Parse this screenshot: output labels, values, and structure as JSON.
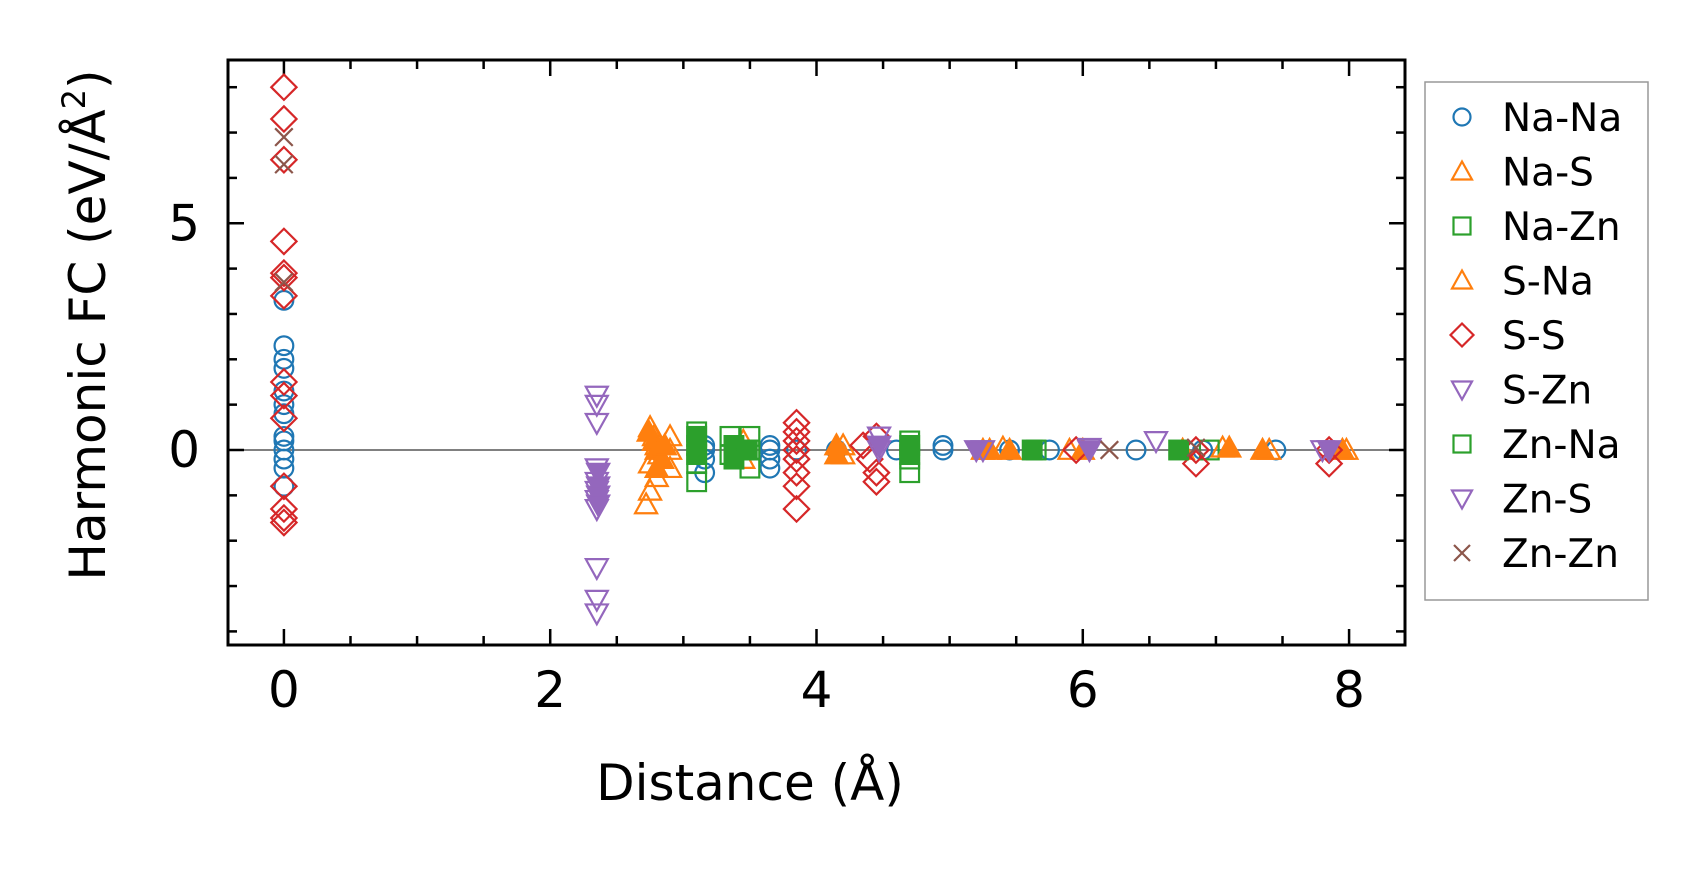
{
  "chart_data": {
    "type": "scatter",
    "title": "",
    "xlabel": "Distance (Å)",
    "ylabel": "Harmonic FC (eV/Å",
    "ylabel_sup": "2",
    "ylabel_close": ")",
    "xlim": [
      -0.42,
      8.42
    ],
    "ylim": [
      -4.3,
      8.6
    ],
    "xticks": [
      0,
      2,
      4,
      6,
      8
    ],
    "xtick_labels": [
      "0",
      "2",
      "4",
      "6",
      "8"
    ],
    "yticks": [
      0,
      5
    ],
    "ytick_labels": [
      "0",
      "5"
    ],
    "zero_line": 0,
    "legend_position": "outside-right",
    "series": [
      {
        "name": "Na-Na",
        "marker": "circle",
        "filled": false,
        "color": "#1f77b4",
        "points": [
          [
            0,
            2.3
          ],
          [
            0,
            2.0
          ],
          [
            0,
            1.8
          ],
          [
            0,
            1.3
          ],
          [
            0,
            1.0
          ],
          [
            0,
            0.8
          ],
          [
            0,
            0.3
          ],
          [
            0,
            0.2
          ],
          [
            0,
            0.0
          ],
          [
            0,
            -0.2
          ],
          [
            0,
            -0.4
          ],
          [
            0,
            -0.8
          ],
          [
            0,
            3.3
          ],
          [
            3.16,
            0.1
          ],
          [
            3.16,
            0.0
          ],
          [
            3.16,
            -0.2
          ],
          [
            3.16,
            -0.5
          ],
          [
            3.65,
            0.1
          ],
          [
            3.65,
            0.0
          ],
          [
            3.65,
            -0.2
          ],
          [
            3.65,
            -0.4
          ],
          [
            3.85,
            0.0
          ],
          [
            4.15,
            0.0
          ],
          [
            4.6,
            0.0
          ],
          [
            4.95,
            0.1
          ],
          [
            4.95,
            0.0
          ],
          [
            5.45,
            0.0
          ],
          [
            5.75,
            0.0
          ],
          [
            6.4,
            0.0
          ],
          [
            6.9,
            0.0
          ],
          [
            7.45,
            0.0
          ]
        ]
      },
      {
        "name": "Na-S",
        "marker": "triangle-up",
        "filled": false,
        "color": "#ff7f0e",
        "points": [
          [
            2.75,
            0.5
          ],
          [
            2.78,
            0.3
          ],
          [
            2.8,
            0.1
          ],
          [
            2.82,
            -0.1
          ],
          [
            2.75,
            -0.3
          ],
          [
            2.8,
            -0.6
          ],
          [
            2.75,
            -0.9
          ],
          [
            2.72,
            -1.2
          ],
          [
            2.9,
            0.3
          ],
          [
            2.9,
            0.0
          ],
          [
            2.9,
            -0.4
          ],
          [
            3.45,
            0.2
          ],
          [
            3.45,
            -0.2
          ],
          [
            4.2,
            0.1
          ],
          [
            4.2,
            -0.1
          ],
          [
            5.25,
            0.0
          ],
          [
            5.4,
            0.05
          ],
          [
            5.9,
            0.0
          ],
          [
            6.75,
            0.0
          ],
          [
            7.05,
            0.05
          ],
          [
            7.4,
            0.0
          ],
          [
            7.98,
            0.0
          ]
        ]
      },
      {
        "name": "Na-Zn",
        "marker": "square",
        "filled": false,
        "color": "#2ca02c",
        "points": [
          [
            3.1,
            0.4
          ],
          [
            3.1,
            0.1
          ],
          [
            3.1,
            -0.3
          ],
          [
            3.1,
            -0.7
          ],
          [
            3.35,
            0.3
          ],
          [
            3.35,
            -0.1
          ],
          [
            3.5,
            0.3
          ],
          [
            3.5,
            0.0
          ],
          [
            3.5,
            -0.4
          ],
          [
            4.7,
            0.2
          ],
          [
            4.7,
            -0.2
          ],
          [
            4.7,
            -0.5
          ],
          [
            5.65,
            0.0
          ],
          [
            6.95,
            0.0
          ]
        ]
      },
      {
        "name": "S-Na",
        "marker": "triangle-up",
        "filled": true,
        "color": "#ff7f0e",
        "points": [
          [
            2.74,
            0.4
          ],
          [
            2.78,
            0.2
          ],
          [
            2.8,
            0.0
          ],
          [
            2.84,
            -0.2
          ],
          [
            2.8,
            -0.4
          ],
          [
            2.86,
            0.1
          ],
          [
            4.15,
            0.1
          ],
          [
            4.15,
            -0.1
          ],
          [
            5.3,
            0.0
          ],
          [
            5.45,
            0.0
          ],
          [
            6.0,
            0.0
          ],
          [
            6.75,
            0.0
          ],
          [
            7.1,
            0.05
          ],
          [
            7.35,
            0.0
          ],
          [
            7.95,
            0.0
          ]
        ]
      },
      {
        "name": "S-S",
        "marker": "diamond",
        "filled": false,
        "color": "#d62728",
        "points": [
          [
            0,
            8.0
          ],
          [
            0,
            7.3
          ],
          [
            0,
            6.4
          ],
          [
            0,
            4.6
          ],
          [
            0,
            3.9
          ],
          [
            0,
            3.8
          ],
          [
            0,
            3.4
          ],
          [
            0,
            1.5
          ],
          [
            0,
            1.2
          ],
          [
            0,
            0.7
          ],
          [
            0,
            -0.8
          ],
          [
            0,
            -1.3
          ],
          [
            0,
            -1.5
          ],
          [
            0,
            -1.6
          ],
          [
            3.85,
            0.6
          ],
          [
            3.85,
            0.4
          ],
          [
            3.85,
            0.2
          ],
          [
            3.85,
            0.0
          ],
          [
            3.85,
            -0.2
          ],
          [
            3.85,
            -0.5
          ],
          [
            3.85,
            -0.8
          ],
          [
            3.85,
            -1.3
          ],
          [
            4.35,
            0.1
          ],
          [
            4.4,
            -0.2
          ],
          [
            4.45,
            -0.5
          ],
          [
            4.45,
            -0.7
          ],
          [
            4.45,
            0.3
          ],
          [
            5.95,
            0.0
          ],
          [
            6.85,
            0.0
          ],
          [
            6.85,
            -0.3
          ],
          [
            7.85,
            0.0
          ],
          [
            7.85,
            -0.3
          ]
        ]
      },
      {
        "name": "S-Zn",
        "marker": "triangle-down",
        "filled": false,
        "color": "#9467bd",
        "points": [
          [
            2.35,
            1.2
          ],
          [
            2.35,
            1.0
          ],
          [
            2.35,
            0.6
          ],
          [
            2.35,
            -0.4
          ],
          [
            2.35,
            -0.7
          ],
          [
            2.35,
            -0.9
          ],
          [
            2.35,
            -1.1
          ],
          [
            2.35,
            -1.3
          ],
          [
            2.35,
            -2.6
          ],
          [
            2.35,
            -3.3
          ],
          [
            2.35,
            -3.6
          ],
          [
            4.47,
            0.3
          ],
          [
            4.47,
            0.0
          ],
          [
            5.25,
            0.0
          ],
          [
            6.05,
            0.05
          ],
          [
            6.55,
            0.2
          ],
          [
            7.8,
            0.0
          ]
        ]
      },
      {
        "name": "Zn-Na",
        "marker": "square",
        "filled": true,
        "color": "#2ca02c",
        "points": [
          [
            3.1,
            0.3
          ],
          [
            3.1,
            -0.1
          ],
          [
            3.38,
            0.1
          ],
          [
            3.38,
            -0.2
          ],
          [
            3.48,
            0.0
          ],
          [
            4.7,
            0.1
          ],
          [
            4.7,
            -0.1
          ],
          [
            5.62,
            0.0
          ],
          [
            6.72,
            0.0
          ]
        ]
      },
      {
        "name": "Zn-S",
        "marker": "triangle-down",
        "filled": true,
        "color": "#9467bd",
        "points": [
          [
            2.36,
            -0.5
          ],
          [
            2.36,
            -0.8
          ],
          [
            2.36,
            -1.0
          ],
          [
            2.36,
            -1.2
          ],
          [
            4.47,
            0.1
          ],
          [
            5.2,
            0.0
          ],
          [
            6.05,
            0.0
          ],
          [
            7.85,
            0.0
          ]
        ]
      },
      {
        "name": "Zn-Zn",
        "marker": "x",
        "filled": false,
        "color": "#8c564b",
        "points": [
          [
            0,
            6.9
          ],
          [
            0,
            6.3
          ],
          [
            0,
            3.7
          ],
          [
            6.2,
            0.0
          ],
          [
            6.85,
            0.05
          ]
        ]
      }
    ]
  }
}
